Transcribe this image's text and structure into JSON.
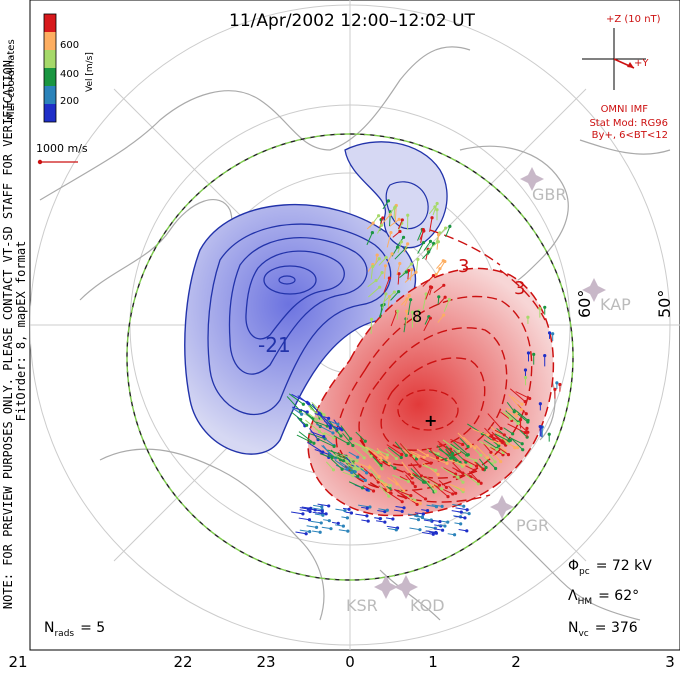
{
  "header": {
    "title": "11/Apr/2002 12:00–12:02 UT"
  },
  "colorbar": {
    "axis_label": "Vel [m/s]",
    "ticks": [
      "600",
      "400",
      "200"
    ],
    "colors": [
      "#d7191c",
      "#fdae61",
      "#a6d96a",
      "#1a9641",
      "#2b83ba",
      "#1f2fc8"
    ]
  },
  "coords_label": "MLT coordinates",
  "scale_vector": {
    "label": "1000 m/s"
  },
  "imf": {
    "z_label": "+Z (10 nT)",
    "y_label": "+Y",
    "source": "OMNI IMF",
    "model_line1": "Stat Mod: RG96",
    "model_line2": "By+, 6<BT<12"
  },
  "lat_labels": [
    "60°",
    "50°"
  ],
  "stations": [
    "GBR",
    "KAP",
    "PGR",
    "KSR",
    "KOD"
  ],
  "contour_labels": [
    "-21",
    "3",
    "3",
    "8"
  ],
  "notes": {
    "line1": "NOTE: FOR PREVIEW PURPOSES ONLY. PLEASE CONTACT VT-SD STAFF FOR VERIFICATION.",
    "line2": "FitOrder: 8, mapEX format"
  },
  "stats": {
    "phi_sym": "Φ",
    "phi_sub": "pc",
    "phi_val": "= 72 kV",
    "lam_sym": "Λ",
    "lam_sub": "HM",
    "lam_val": "= 62°",
    "n_sym": "N",
    "n_sub": "vc",
    "n_val": "= 376"
  },
  "nrads": {
    "sym": "N",
    "sub": "rads",
    "val": "= 5"
  },
  "mlt_axis": [
    "21",
    "22",
    "23",
    "0",
    "1",
    "2",
    "3"
  ],
  "style": {
    "neg": "#2233aa",
    "pos": "#cc1111",
    "grid": "#cccccc",
    "land": "#aaaaaa"
  }
}
